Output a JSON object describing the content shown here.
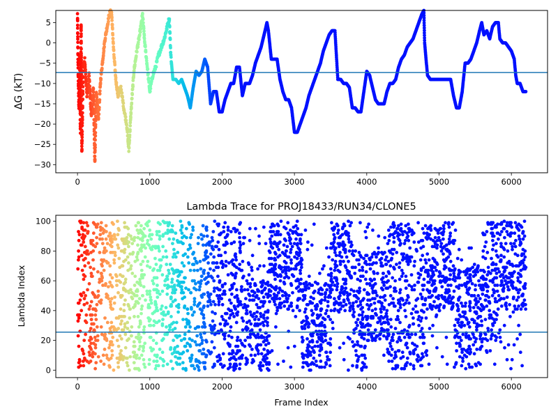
{
  "chart_data": [
    {
      "type": "scatter",
      "title": "",
      "xlabel": "",
      "ylabel": "ΔG (kT)",
      "xlim": [
        -300,
        6500
      ],
      "ylim": [
        -32,
        8
      ],
      "xticks": [
        "0",
        "1000",
        "2000",
        "3000",
        "4000",
        "5000",
        "6000"
      ],
      "xtick_values": [
        0,
        1000,
        2000,
        3000,
        4000,
        5000,
        6000
      ],
      "yticks": [
        "5",
        "0",
        "−5",
        "−10",
        "−15",
        "−20",
        "−25",
        "−30"
      ],
      "ytick_values": [
        5,
        0,
        -5,
        -10,
        -15,
        -20,
        -25,
        -30
      ],
      "hline": -7.3,
      "hline_color": "#1f77b4",
      "colormap": "rainbow (red at low frame index to violet at high frame index)",
      "trajectory": [
        [
          0,
          7
        ],
        [
          10,
          -8
        ],
        [
          20,
          -16
        ],
        [
          30,
          -3
        ],
        [
          40,
          -22
        ],
        [
          50,
          5
        ],
        [
          60,
          -27
        ],
        [
          80,
          -6
        ],
        [
          100,
          -4
        ],
        [
          130,
          -13
        ],
        [
          160,
          -8
        ],
        [
          190,
          -18
        ],
        [
          220,
          -11
        ],
        [
          240,
          -29.5
        ],
        [
          260,
          -12
        ],
        [
          290,
          -19
        ],
        [
          320,
          -9
        ],
        [
          350,
          -4
        ],
        [
          380,
          1
        ],
        [
          410,
          4
        ],
        [
          440,
          7
        ],
        [
          470,
          8
        ],
        [
          500,
          -2
        ],
        [
          530,
          -9
        ],
        [
          560,
          -13
        ],
        [
          600,
          -11
        ],
        [
          640,
          -16
        ],
        [
          680,
          -20
        ],
        [
          710,
          -26.5
        ],
        [
          740,
          -17
        ],
        [
          780,
          -7
        ],
        [
          820,
          -2
        ],
        [
          860,
          2
        ],
        [
          900,
          7
        ],
        [
          930,
          0
        ],
        [
          960,
          -5
        ],
        [
          1000,
          -12
        ],
        [
          1040,
          -8
        ],
        [
          1080,
          -6
        ],
        [
          1120,
          -3
        ],
        [
          1160,
          -1
        ],
        [
          1200,
          1
        ],
        [
          1240,
          4
        ],
        [
          1270,
          6
        ],
        [
          1290,
          -3
        ],
        [
          1320,
          -9
        ],
        [
          1360,
          -9
        ],
        [
          1400,
          -10
        ],
        [
          1440,
          -9
        ],
        [
          1480,
          -11
        ],
        [
          1520,
          -13
        ],
        [
          1560,
          -16
        ],
        [
          1600,
          -11
        ],
        [
          1640,
          -7
        ],
        [
          1680,
          -8
        ],
        [
          1720,
          -7
        ],
        [
          1760,
          -4
        ],
        [
          1800,
          -6
        ],
        [
          1840,
          -15
        ],
        [
          1880,
          -12
        ],
        [
          1920,
          -12
        ],
        [
          1960,
          -17
        ],
        [
          2000,
          -17
        ],
        [
          2040,
          -14
        ],
        [
          2080,
          -12
        ],
        [
          2120,
          -10
        ],
        [
          2160,
          -10
        ],
        [
          2200,
          -6
        ],
        [
          2240,
          -6
        ],
        [
          2280,
          -13
        ],
        [
          2320,
          -10
        ],
        [
          2380,
          -10
        ],
        [
          2420,
          -8
        ],
        [
          2460,
          -5
        ],
        [
          2500,
          -3
        ],
        [
          2540,
          -1
        ],
        [
          2580,
          2
        ],
        [
          2620,
          5
        ],
        [
          2640,
          3
        ],
        [
          2680,
          -4
        ],
        [
          2720,
          -4
        ],
        [
          2760,
          -4
        ],
        [
          2800,
          -9
        ],
        [
          2840,
          -12
        ],
        [
          2880,
          -14
        ],
        [
          2920,
          -14
        ],
        [
          2960,
          -16
        ],
        [
          3000,
          -22
        ],
        [
          3040,
          -22
        ],
        [
          3080,
          -20
        ],
        [
          3120,
          -18
        ],
        [
          3160,
          -16
        ],
        [
          3200,
          -13
        ],
        [
          3240,
          -11
        ],
        [
          3280,
          -9
        ],
        [
          3320,
          -7
        ],
        [
          3360,
          -5
        ],
        [
          3400,
          -2
        ],
        [
          3440,
          0
        ],
        [
          3480,
          2
        ],
        [
          3520,
          3
        ],
        [
          3560,
          3
        ],
        [
          3600,
          -9
        ],
        [
          3640,
          -9
        ],
        [
          3680,
          -10
        ],
        [
          3720,
          -10
        ],
        [
          3760,
          -11
        ],
        [
          3800,
          -16
        ],
        [
          3840,
          -16
        ],
        [
          3880,
          -17
        ],
        [
          3920,
          -17
        ],
        [
          3960,
          -12
        ],
        [
          4000,
          -7
        ],
        [
          4040,
          -8
        ],
        [
          4080,
          -11
        ],
        [
          4120,
          -14
        ],
        [
          4160,
          -15
        ],
        [
          4200,
          -15
        ],
        [
          4240,
          -15
        ],
        [
          4280,
          -12
        ],
        [
          4320,
          -10
        ],
        [
          4360,
          -10
        ],
        [
          4400,
          -9
        ],
        [
          4440,
          -6
        ],
        [
          4480,
          -4
        ],
        [
          4520,
          -3
        ],
        [
          4560,
          -1
        ],
        [
          4600,
          0
        ],
        [
          4640,
          1
        ],
        [
          4680,
          3
        ],
        [
          4720,
          5
        ],
        [
          4760,
          7
        ],
        [
          4790,
          8
        ],
        [
          4800,
          0
        ],
        [
          4840,
          -8
        ],
        [
          4880,
          -9
        ],
        [
          4920,
          -9
        ],
        [
          4960,
          -9
        ],
        [
          5000,
          -9
        ],
        [
          5040,
          -9
        ],
        [
          5080,
          -9
        ],
        [
          5120,
          -9
        ],
        [
          5160,
          -9
        ],
        [
          5200,
          -13
        ],
        [
          5240,
          -16
        ],
        [
          5280,
          -16
        ],
        [
          5320,
          -12
        ],
        [
          5360,
          -5
        ],
        [
          5400,
          -5
        ],
        [
          5440,
          -4
        ],
        [
          5480,
          -2
        ],
        [
          5520,
          0
        ],
        [
          5560,
          3
        ],
        [
          5590,
          5
        ],
        [
          5620,
          2
        ],
        [
          5660,
          3
        ],
        [
          5700,
          1
        ],
        [
          5740,
          4
        ],
        [
          5780,
          5
        ],
        [
          5820,
          5
        ],
        [
          5840,
          1
        ],
        [
          5880,
          0
        ],
        [
          5920,
          0
        ],
        [
          5960,
          -1
        ],
        [
          6000,
          -2
        ],
        [
          6040,
          -4
        ],
        [
          6060,
          -8
        ],
        [
          6080,
          -10
        ],
        [
          6120,
          -10
        ],
        [
          6160,
          -12
        ],
        [
          6200,
          -12
        ]
      ]
    },
    {
      "type": "scatter",
      "title": "Lambda Trace for PROJ18433/RUN34/CLONE5",
      "xlabel": "Frame Index",
      "ylabel": "Lambda Index",
      "xlim": [
        -300,
        6500
      ],
      "ylim": [
        -5,
        104
      ],
      "xticks": [
        "0",
        "1000",
        "2000",
        "3000",
        "4000",
        "5000",
        "6000"
      ],
      "xtick_values": [
        0,
        1000,
        2000,
        3000,
        4000,
        5000,
        6000
      ],
      "yticks": [
        "0",
        "20",
        "40",
        "60",
        "80",
        "100"
      ],
      "ytick_values": [
        0,
        20,
        40,
        60,
        80,
        100
      ],
      "hline": 25.5,
      "hline_color": "#1f77b4",
      "colormap": "rainbow (red at low frame index to violet at high frame index)",
      "frames": 6200,
      "bands": [
        [
          0,
          200,
          0,
          100
        ],
        [
          200,
          700,
          0,
          100
        ],
        [
          700,
          1300,
          0,
          100
        ],
        [
          1300,
          1800,
          0,
          100
        ],
        [
          1800,
          2300,
          0,
          100
        ],
        [
          2300,
          2650,
          0,
          60
        ],
        [
          2650,
          3100,
          40,
          100
        ],
        [
          3100,
          3500,
          0,
          60
        ],
        [
          3500,
          3800,
          40,
          100
        ],
        [
          3800,
          4000,
          0,
          80
        ],
        [
          4000,
          4300,
          20,
          80
        ],
        [
          4300,
          4800,
          0,
          100
        ],
        [
          4800,
          5200,
          40,
          100
        ],
        [
          5200,
          5600,
          0,
          70
        ],
        [
          5600,
          5850,
          20,
          100
        ],
        [
          5850,
          6200,
          40,
          100
        ]
      ]
    }
  ]
}
